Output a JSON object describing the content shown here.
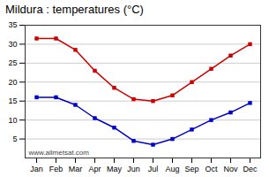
{
  "chart_data": {
    "type": "line",
    "title": "Mildura : temperatures (°C)",
    "categories": [
      "Jan",
      "Feb",
      "Mar",
      "Apr",
      "May",
      "Jun",
      "Jul",
      "Aug",
      "Sep",
      "Oct",
      "Nov",
      "Dec"
    ],
    "series": [
      {
        "color": "#cc0000",
        "marker": "square",
        "values": [
          31.5,
          31.5,
          28.5,
          23.0,
          18.5,
          15.5,
          15.0,
          16.5,
          20.0,
          23.5,
          27.0,
          30.0
        ]
      },
      {
        "color": "#0000cc",
        "marker": "square",
        "values": [
          16.0,
          16.0,
          14.0,
          10.5,
          8.0,
          4.5,
          3.5,
          5.0,
          7.5,
          10.0,
          12.0,
          14.5
        ]
      }
    ],
    "ylim": [
      0,
      35
    ],
    "yticks": [
      5,
      10,
      15,
      20,
      25,
      30,
      35
    ],
    "grid": true,
    "annotations": [
      "www.allmetsat.com"
    ]
  }
}
